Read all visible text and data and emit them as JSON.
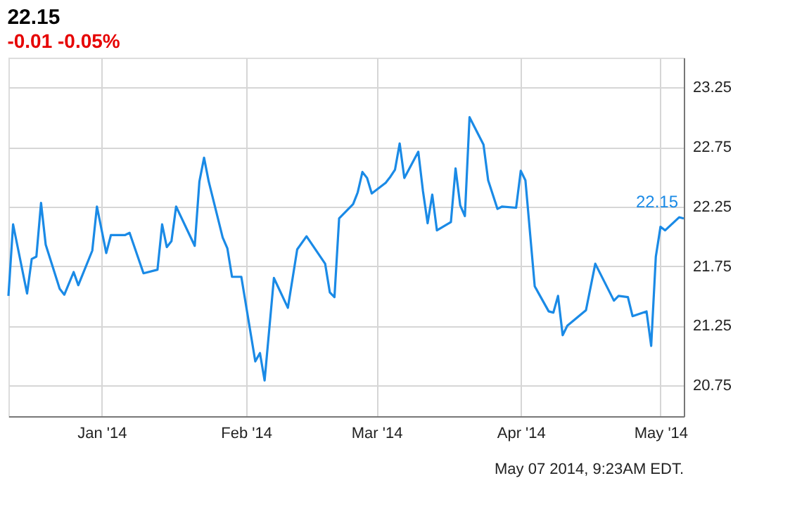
{
  "chart_data": {
    "type": "line",
    "title": "22.15",
    "subtitle": "-0.01  -0.05%",
    "x": [
      "2013-12-12",
      "2013-12-13",
      "2013-12-16",
      "2013-12-17",
      "2013-12-18",
      "2013-12-19",
      "2013-12-20",
      "2013-12-23",
      "2013-12-24",
      "2013-12-26",
      "2013-12-27",
      "2013-12-30",
      "2013-12-31",
      "2014-01-02",
      "2014-01-03",
      "2014-01-06",
      "2014-01-07",
      "2014-01-10",
      "2014-01-13",
      "2014-01-14",
      "2014-01-15",
      "2014-01-16",
      "2014-01-17",
      "2014-01-21",
      "2014-01-22",
      "2014-01-23",
      "2014-01-24",
      "2014-01-27",
      "2014-01-28",
      "2014-01-29",
      "2014-01-31",
      "2014-02-03",
      "2014-02-04",
      "2014-02-05",
      "2014-02-07",
      "2014-02-10",
      "2014-02-12",
      "2014-02-14",
      "2014-02-18",
      "2014-02-19",
      "2014-02-20",
      "2014-02-21",
      "2014-02-24",
      "2014-02-25",
      "2014-02-26",
      "2014-02-27",
      "2014-02-28",
      "2014-03-03",
      "2014-03-04",
      "2014-03-05",
      "2014-03-06",
      "2014-03-07",
      "2014-03-10",
      "2014-03-11",
      "2014-03-12",
      "2014-03-13",
      "2014-03-14",
      "2014-03-17",
      "2014-03-18",
      "2014-03-19",
      "2014-03-20",
      "2014-03-21",
      "2014-03-24",
      "2014-03-25",
      "2014-03-27",
      "2014-03-28",
      "2014-03-31",
      "2014-04-01",
      "2014-04-02",
      "2014-04-04",
      "2014-04-07",
      "2014-04-08",
      "2014-04-09",
      "2014-04-10",
      "2014-04-11",
      "2014-04-15",
      "2014-04-17",
      "2014-04-21",
      "2014-04-22",
      "2014-04-24",
      "2014-04-25",
      "2014-04-28",
      "2014-04-29",
      "2014-04-30",
      "2014-05-01",
      "2014-05-02",
      "2014-05-05",
      "2014-05-06"
    ],
    "series": [
      {
        "color": "#1a8ae6",
        "values": [
          21.5,
          22.1,
          21.52,
          21.81,
          21.83,
          22.28,
          21.93,
          21.56,
          21.51,
          21.7,
          21.59,
          21.88,
          22.25,
          21.86,
          22.01,
          22.01,
          22.03,
          21.69,
          21.72,
          22.1,
          21.91,
          21.96,
          22.25,
          21.92,
          22.46,
          22.66,
          22.46,
          21.99,
          21.9,
          21.66,
          21.66,
          20.95,
          21.02,
          20.79,
          21.65,
          21.4,
          21.89,
          22.0,
          21.77,
          21.53,
          21.49,
          22.15,
          22.27,
          22.37,
          22.54,
          22.49,
          22.36,
          22.45,
          22.5,
          22.56,
          22.78,
          22.49,
          22.71,
          22.38,
          22.11,
          22.35,
          22.05,
          22.12,
          22.57,
          22.26,
          22.17,
          23.0,
          22.77,
          22.47,
          22.23,
          22.25,
          22.24,
          22.55,
          22.47,
          21.58,
          21.37,
          21.36,
          21.5,
          21.17,
          21.25,
          21.38,
          21.77,
          21.46,
          21.5,
          21.49,
          21.33,
          21.37,
          21.08,
          21.83,
          22.08,
          22.05,
          22.16,
          22.15
        ]
      }
    ],
    "xlim": [
      "2013-12-12",
      "2014-05-06"
    ],
    "xticks": [
      {
        "value": "2014-01-01",
        "label": "Jan '14"
      },
      {
        "value": "2014-02-01",
        "label": "Feb '14"
      },
      {
        "value": "2014-03-01",
        "label": "Mar '14"
      },
      {
        "value": "2014-04-01",
        "label": "Apr '14"
      },
      {
        "value": "2014-05-01",
        "label": "May '14"
      }
    ],
    "ylim": [
      20.49,
      23.5
    ],
    "yticks": [
      20.75,
      21.25,
      21.75,
      22.25,
      22.75,
      23.25
    ],
    "annotations": [
      {
        "text": "22.15",
        "x": "2014-05-06",
        "y": 22.15
      },
      "May 07 2014, 9:23AM EDT."
    ],
    "grid": true,
    "marker": "none",
    "line_style": "solid"
  }
}
